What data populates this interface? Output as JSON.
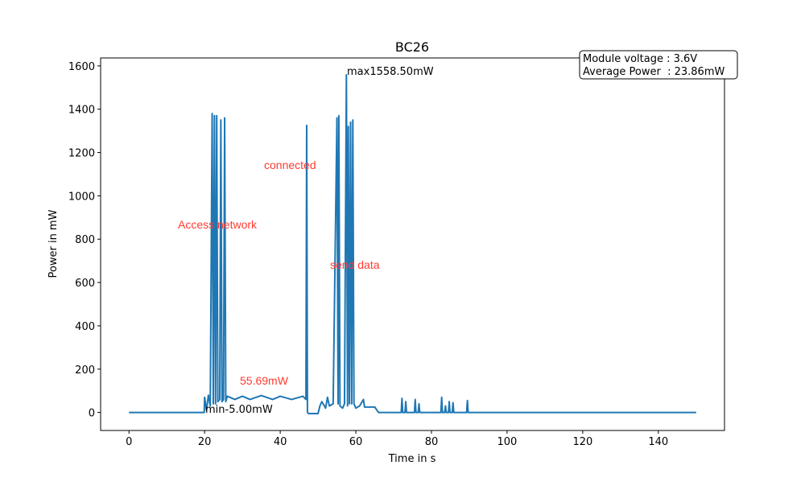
{
  "chart_data": {
    "type": "line",
    "title": "BC26",
    "x_label": "Time in s",
    "y_label": "Power in mW",
    "x": [
      0,
      10,
      19.9,
      20,
      20.5,
      21,
      21.5,
      22,
      22.3,
      22.6,
      22.9,
      23.2,
      23.5,
      24,
      24.3,
      24.6,
      25,
      25.3,
      25.6,
      26,
      28,
      30,
      32,
      35,
      38,
      40,
      43,
      46,
      46.8,
      47,
      47.2,
      47.5,
      50,
      50.5,
      51,
      52,
      52.5,
      53,
      54,
      55,
      55.3,
      55.5,
      55.8,
      56.5,
      57,
      57.5,
      57.8,
      58,
      58.3,
      58.6,
      58.9,
      59.2,
      59.5,
      60,
      61,
      62,
      62.3,
      65,
      66,
      72,
      72.2,
      72.4,
      73,
      73.2,
      73.4,
      75.5,
      75.7,
      75.9,
      76.5,
      76.7,
      76.9,
      82.5,
      82.7,
      82.9,
      83.5,
      83.7,
      83.9,
      84.5,
      84.7,
      84.9,
      85.5,
      85.7,
      85.9,
      89.3,
      89.5,
      89.7,
      150
    ],
    "series": [
      {
        "name": "power",
        "color": "#1f77b4",
        "values": [
          0,
          0,
          0,
          70,
          10,
          80,
          30,
          1380,
          40,
          1370,
          40,
          1370,
          50,
          60,
          1350,
          50,
          60,
          1360,
          50,
          75,
          60,
          75,
          60,
          78,
          60,
          75,
          60,
          75,
          60,
          1325,
          0,
          -5,
          -5,
          30,
          50,
          20,
          70,
          30,
          40,
          1360,
          40,
          1370,
          30,
          20,
          40,
          1558.5,
          30,
          1320,
          40,
          1340,
          40,
          1350,
          40,
          20,
          30,
          60,
          25,
          25,
          0,
          0,
          65,
          0,
          0,
          50,
          0,
          0,
          60,
          0,
          0,
          40,
          0,
          0,
          70,
          0,
          0,
          30,
          0,
          0,
          50,
          0,
          0,
          45,
          0,
          0,
          55,
          0,
          0
        ]
      }
    ],
    "xlim": [
      -7.5,
      157.5
    ],
    "ylim": [
      -83.2,
      1636.7
    ],
    "xticks": [
      0,
      20,
      40,
      60,
      80,
      100,
      120,
      140
    ],
    "yticks": [
      0,
      200,
      400,
      600,
      800,
      1000,
      1200,
      1400,
      1600
    ],
    "annotations": {
      "max": "max1558.50mW",
      "min": "min-5.00mW",
      "mean": "55.69mW",
      "access": "Access network",
      "connected": "connected",
      "send": "send data"
    },
    "info": [
      "Module voltage : 3.6V",
      "Average Power  : 23.86mW"
    ]
  }
}
